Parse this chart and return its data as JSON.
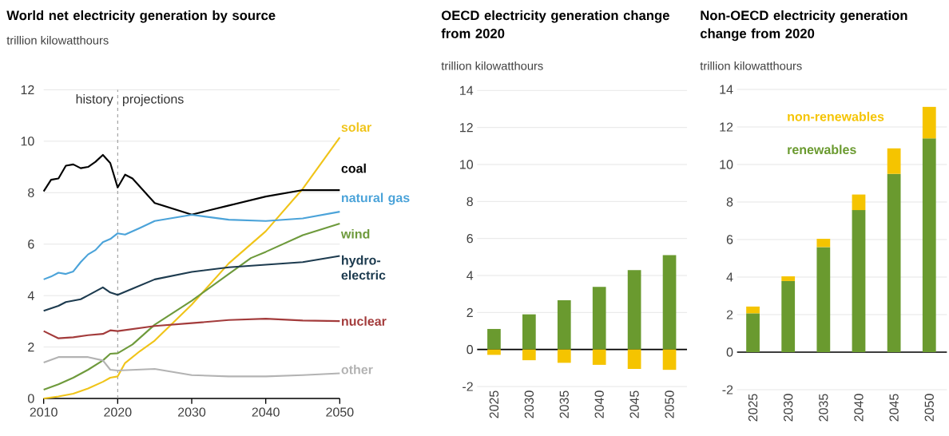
{
  "chart_data": [
    {
      "type": "line",
      "title": "World net electricity generation by source",
      "ylabel": "trillion kilowatthours",
      "xlim": [
        2010,
        2050
      ],
      "ylim": [
        0,
        12
      ],
      "xticks": [
        2010,
        2020,
        2030,
        2040,
        2050
      ],
      "yticks": [
        0,
        2,
        4,
        6,
        8,
        10,
        12
      ],
      "grid": "y",
      "ref_lines": [
        {
          "axis": "x",
          "value": 2020,
          "color": "#999999",
          "line_style": "dashed"
        }
      ],
      "annotations": [
        "history",
        "projections"
      ],
      "series": [
        {
          "name": "solar",
          "color": "#f0c419",
          "x": [
            2010,
            2012,
            2014,
            2016,
            2018,
            2019,
            2020,
            2021,
            2023,
            2025,
            2030,
            2035,
            2040,
            2045,
            2050
          ],
          "values": [
            0.0,
            0.08,
            0.19,
            0.39,
            0.65,
            0.81,
            0.86,
            1.38,
            1.84,
            2.25,
            3.65,
            5.25,
            6.5,
            8.15,
            10.15
          ]
        },
        {
          "name": "coal",
          "color": "#000000",
          "x": [
            2010,
            2011,
            2012,
            2013,
            2014,
            2015,
            2016,
            2017,
            2018,
            2019,
            2020,
            2021,
            2022,
            2025,
            2030,
            2035,
            2040,
            2045,
            2050
          ],
          "values": [
            8.05,
            8.5,
            8.55,
            9.05,
            9.1,
            8.95,
            9.0,
            9.2,
            9.47,
            9.15,
            8.2,
            8.7,
            8.55,
            7.6,
            7.15,
            7.5,
            7.85,
            8.1,
            8.1
          ]
        },
        {
          "name": "natural gas",
          "color": "#4ba3d9",
          "x": [
            2010,
            2011,
            2012,
            2013,
            2014,
            2015,
            2016,
            2017,
            2018,
            2019,
            2020,
            2021,
            2023,
            2025,
            2030,
            2035,
            2040,
            2045,
            2050
          ],
          "values": [
            4.63,
            4.74,
            4.89,
            4.84,
            4.94,
            5.3,
            5.6,
            5.77,
            6.08,
            6.2,
            6.42,
            6.37,
            6.63,
            6.9,
            7.14,
            6.95,
            6.9,
            7.0,
            7.26
          ]
        },
        {
          "name": "wind",
          "color": "#6e9a3c",
          "x": [
            2010,
            2012,
            2014,
            2016,
            2018,
            2019,
            2020,
            2022,
            2025,
            2030,
            2035,
            2038,
            2040,
            2045,
            2050
          ],
          "values": [
            0.34,
            0.55,
            0.81,
            1.12,
            1.48,
            1.74,
            1.76,
            2.1,
            2.87,
            3.8,
            4.84,
            5.46,
            5.7,
            6.35,
            6.8
          ]
        },
        {
          "name": "hydro-electric",
          "color": "#1d3b4f",
          "x": [
            2010,
            2012,
            2013,
            2015,
            2016,
            2018,
            2019,
            2020,
            2022,
            2025,
            2030,
            2035,
            2040,
            2045,
            2050
          ],
          "values": [
            3.41,
            3.6,
            3.75,
            3.86,
            4.01,
            4.32,
            4.12,
            4.03,
            4.27,
            4.63,
            4.92,
            5.1,
            5.2,
            5.3,
            5.54
          ]
        },
        {
          "name": "nuclear",
          "color": "#a33b3b",
          "x": [
            2010,
            2012,
            2014,
            2016,
            2018,
            2019,
            2020,
            2025,
            2030,
            2035,
            2040,
            2045,
            2050
          ],
          "values": [
            2.62,
            2.34,
            2.38,
            2.46,
            2.51,
            2.65,
            2.62,
            2.82,
            2.93,
            3.05,
            3.1,
            3.03,
            3.01
          ]
        },
        {
          "name": "other",
          "color": "#b3b3b3",
          "x": [
            2010,
            2012,
            2016,
            2018,
            2019,
            2020,
            2025,
            2030,
            2035,
            2040,
            2045,
            2050
          ],
          "values": [
            1.4,
            1.61,
            1.61,
            1.48,
            1.12,
            1.09,
            1.15,
            0.91,
            0.86,
            0.86,
            0.91,
            0.98
          ]
        }
      ]
    },
    {
      "type": "bar",
      "title": "OECD electricity generation change from 2020",
      "ylabel": "trillion kilowatthours",
      "categories": [
        "2025",
        "2030",
        "2035",
        "2040",
        "2045",
        "2050"
      ],
      "ylim": [
        -2,
        14
      ],
      "yticks": [
        -2,
        0,
        2,
        4,
        6,
        8,
        10,
        12,
        14
      ],
      "grid": "y",
      "stacked": true,
      "series": [
        {
          "color": "#6a9a2f",
          "values": [
            1.11,
            1.9,
            2.66,
            3.38,
            4.29,
            5.1
          ]
        },
        {
          "color": "#f5c400",
          "values": [
            -0.29,
            -0.58,
            -0.72,
            -0.83,
            -1.05,
            -1.1
          ]
        }
      ]
    },
    {
      "type": "bar",
      "title": "Non-OECD electricity generation change from 2020",
      "ylabel": "trillion kilowatthours",
      "categories": [
        "2025",
        "2030",
        "2035",
        "2040",
        "2045",
        "2050"
      ],
      "ylim": [
        -2,
        14
      ],
      "yticks": [
        -2,
        0,
        2,
        4,
        6,
        8,
        10,
        12,
        14
      ],
      "grid": "y",
      "stacked": true,
      "series": [
        {
          "name": "renewables",
          "color": "#6a9a2f",
          "values": [
            2.07,
            3.79,
            5.6,
            7.57,
            9.5,
            11.39
          ]
        },
        {
          "name": "non-renewables",
          "color": "#f5c400",
          "values": [
            0.36,
            0.25,
            0.44,
            0.83,
            1.36,
            1.68
          ]
        }
      ]
    }
  ]
}
